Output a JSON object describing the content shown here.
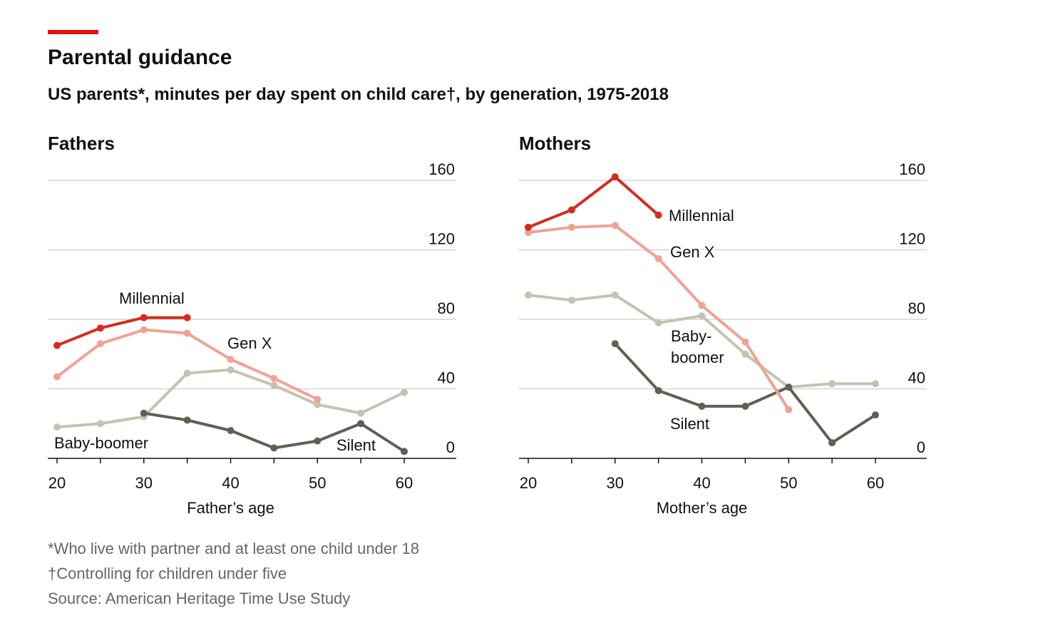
{
  "header": {
    "title": "Parental guidance",
    "subtitle": "US parents*, minutes per day spent on child care†, by generation, 1975-2018",
    "accent_color": "#e3120b"
  },
  "footer": {
    "note1": "*Who live with partner and at least one child under 18",
    "note2": "†Controlling for children under five",
    "source": "Source: American Heritage Time Use Study"
  },
  "chart_data": [
    {
      "type": "line",
      "title": "Fathers",
      "xlabel": "Father’s age",
      "ylabel": "",
      "xlim": [
        20,
        60
      ],
      "ylim": [
        0,
        160
      ],
      "xticks": [
        20,
        30,
        40,
        50,
        60
      ],
      "yticks": [
        0,
        40,
        80,
        120,
        160
      ],
      "grid": true,
      "series": [
        {
          "name": "Millennial",
          "color": "#d52b1e",
          "x": [
            20,
            25,
            30,
            35
          ],
          "values": [
            65,
            75,
            81,
            81
          ]
        },
        {
          "name": "Gen X",
          "color": "#f0a294",
          "x": [
            20,
            25,
            30,
            35,
            40,
            45,
            50
          ],
          "values": [
            47,
            66,
            74,
            72,
            57,
            46,
            34
          ]
        },
        {
          "name": "Baby-boomer",
          "color": "#c4c3b3",
          "x": [
            20,
            25,
            30,
            35,
            40,
            45,
            50,
            55,
            60
          ],
          "values": [
            18,
            20,
            24,
            49,
            51,
            42,
            31,
            26,
            38
          ]
        },
        {
          "name": "Silent",
          "color": "#605f53",
          "x": [
            30,
            35,
            40,
            45,
            50,
            55,
            60
          ],
          "values": [
            26,
            22,
            16,
            6,
            10,
            20,
            4
          ]
        }
      ]
    },
    {
      "type": "line",
      "title": "Mothers",
      "xlabel": "Mother’s age",
      "ylabel": "",
      "xlim": [
        20,
        60
      ],
      "ylim": [
        0,
        160
      ],
      "xticks": [
        20,
        30,
        40,
        50,
        60
      ],
      "yticks": [
        0,
        40,
        80,
        120,
        160
      ],
      "grid": true,
      "series": [
        {
          "name": "Millennial",
          "color": "#d52b1e",
          "x": [
            20,
            25,
            30,
            35
          ],
          "values": [
            133,
            143,
            162,
            140
          ]
        },
        {
          "name": "Gen X",
          "color": "#f0a294",
          "x": [
            20,
            25,
            30,
            35,
            40,
            45,
            50
          ],
          "values": [
            130,
            133,
            134,
            115,
            88,
            67,
            28
          ]
        },
        {
          "name": "Baby-boomer",
          "label_lines": [
            "Baby-",
            "boomer"
          ],
          "color": "#c4c3b3",
          "x": [
            20,
            25,
            30,
            35,
            40,
            45,
            50,
            55,
            60
          ],
          "values": [
            94,
            91,
            94,
            78,
            82,
            60,
            41,
            43,
            43
          ]
        },
        {
          "name": "Silent",
          "color": "#605f53",
          "x": [
            30,
            35,
            40,
            45,
            50,
            55,
            60
          ],
          "values": [
            66,
            39,
            30,
            30,
            41,
            9,
            25
          ]
        }
      ]
    }
  ]
}
